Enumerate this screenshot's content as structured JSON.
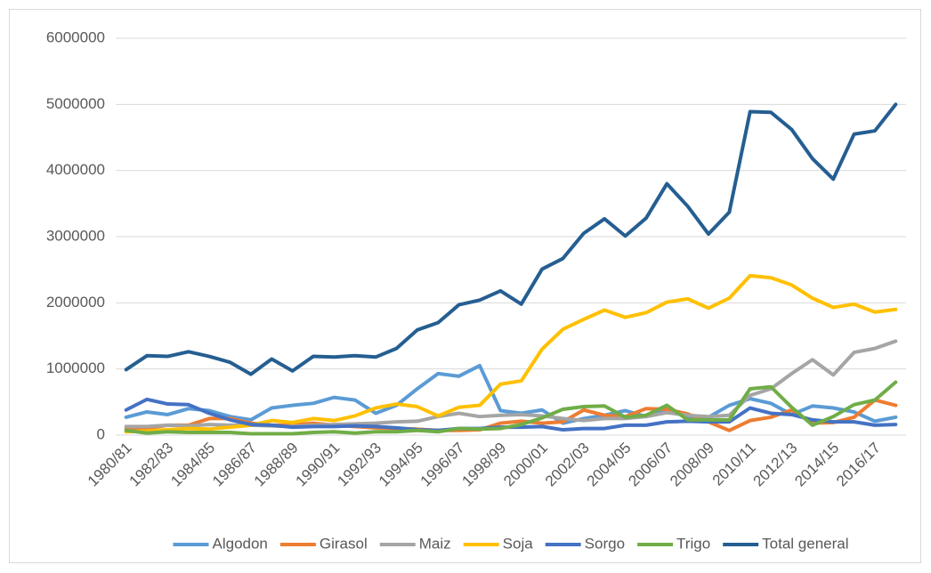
{
  "chart_data": {
    "type": "line",
    "categories": [
      "1980/81",
      null,
      "1982/83",
      null,
      "1984/85",
      null,
      "1986/87",
      null,
      "1988/89",
      null,
      "1990/91",
      null,
      "1992/93",
      null,
      "1994/95",
      null,
      "1996/97",
      null,
      "1998/99",
      null,
      "2000/01",
      null,
      "2002/03",
      null,
      "2004/05",
      null,
      "2006/07",
      null,
      "2008/09",
      null,
      "2010/11",
      null,
      "2012/13",
      null,
      "2014/15",
      null,
      "2016/17",
      null
    ],
    "series": [
      {
        "name": "Algodon",
        "color": "#5b9bd5",
        "values": [
          270000,
          350000,
          310000,
          400000,
          370000,
          280000,
          230000,
          410000,
          450000,
          480000,
          570000,
          530000,
          330000,
          450000,
          700000,
          930000,
          890000,
          1050000,
          370000,
          330000,
          380000,
          180000,
          250000,
          300000,
          370000,
          280000,
          390000,
          280000,
          270000,
          450000,
          550000,
          480000,
          310000,
          440000,
          410000,
          350000,
          210000,
          270000
        ]
      },
      {
        "name": "Girasol",
        "color": "#ed7d31",
        "values": [
          100000,
          100000,
          150000,
          150000,
          250000,
          250000,
          180000,
          150000,
          150000,
          180000,
          150000,
          130000,
          110000,
          100000,
          90000,
          70000,
          70000,
          80000,
          180000,
          210000,
          180000,
          200000,
          380000,
          300000,
          280000,
          400000,
          390000,
          320000,
          200000,
          70000,
          220000,
          270000,
          380000,
          180000,
          190000,
          270000,
          530000,
          450000
        ]
      },
      {
        "name": "Maiz",
        "color": "#a5a5a5",
        "values": [
          130000,
          130000,
          150000,
          140000,
          160000,
          150000,
          150000,
          140000,
          130000,
          150000,
          160000,
          170000,
          180000,
          200000,
          210000,
          280000,
          330000,
          280000,
          300000,
          310000,
          290000,
          250000,
          220000,
          250000,
          250000,
          280000,
          340000,
          300000,
          280000,
          300000,
          600000,
          700000,
          930000,
          1140000,
          910000,
          1250000,
          1310000,
          1420000
        ]
      },
      {
        "name": "Soja",
        "color": "#ffc000",
        "values": [
          50000,
          60000,
          80000,
          100000,
          90000,
          120000,
          150000,
          220000,
          190000,
          250000,
          220000,
          290000,
          410000,
          470000,
          430000,
          290000,
          420000,
          450000,
          770000,
          820000,
          1300000,
          1600000,
          1750000,
          1890000,
          1780000,
          1850000,
          2010000,
          2060000,
          1920000,
          2070000,
          2410000,
          2380000,
          2270000,
          2070000,
          1930000,
          1980000,
          1860000,
          1900000
        ]
      },
      {
        "name": "Sorgo",
        "color": "#4472c4",
        "values": [
          380000,
          540000,
          470000,
          460000,
          330000,
          230000,
          160000,
          150000,
          120000,
          130000,
          130000,
          140000,
          130000,
          110000,
          80000,
          70000,
          100000,
          100000,
          120000,
          120000,
          130000,
          80000,
          100000,
          100000,
          150000,
          150000,
          200000,
          210000,
          200000,
          200000,
          410000,
          330000,
          310000,
          230000,
          200000,
          200000,
          150000,
          160000
        ]
      },
      {
        "name": "Trigo",
        "color": "#70ad47",
        "values": [
          70000,
          30000,
          50000,
          40000,
          40000,
          40000,
          20000,
          20000,
          20000,
          40000,
          50000,
          30000,
          50000,
          50000,
          70000,
          50000,
          100000,
          90000,
          100000,
          160000,
          260000,
          390000,
          430000,
          440000,
          270000,
          300000,
          450000,
          230000,
          230000,
          230000,
          700000,
          730000,
          420000,
          150000,
          280000,
          460000,
          530000,
          800000
        ]
      },
      {
        "name": "Total general",
        "color": "#255e91",
        "values": [
          990000,
          1200000,
          1190000,
          1260000,
          1190000,
          1100000,
          920000,
          1150000,
          970000,
          1190000,
          1180000,
          1200000,
          1180000,
          1310000,
          1590000,
          1700000,
          1970000,
          2040000,
          2180000,
          1980000,
          2510000,
          2670000,
          3050000,
          3270000,
          3010000,
          3280000,
          3800000,
          3460000,
          3040000,
          3370000,
          4890000,
          4880000,
          4620000,
          4180000,
          3870000,
          4550000,
          4600000,
          5000000
        ]
      }
    ],
    "ylim": [
      0,
      6000000
    ],
    "yticks": [
      0,
      1000000,
      2000000,
      3000000,
      4000000,
      5000000,
      6000000
    ],
    "grid": true,
    "legend": "bottom"
  }
}
